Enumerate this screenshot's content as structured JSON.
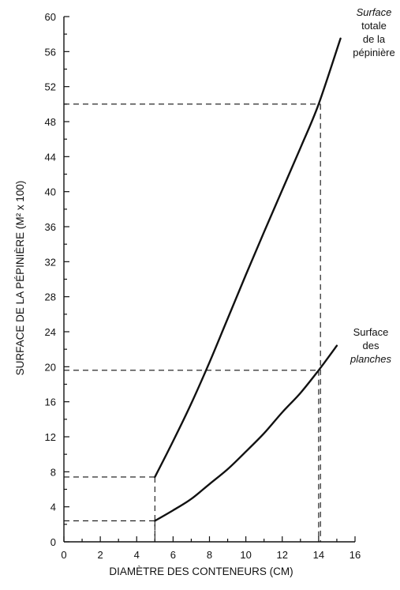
{
  "chart_data": {
    "type": "line",
    "xlabel": "DIAMÈTRE DES CONTENEURS (CM)",
    "ylabel": "SURFACE DE LA PÉPINIÈRE (M² x 100)",
    "xlim": [
      0,
      16
    ],
    "ylim": [
      0,
      60
    ],
    "x_ticks": [
      0,
      2,
      4,
      6,
      8,
      10,
      12,
      14,
      16
    ],
    "y_ticks": [
      0,
      4,
      8,
      12,
      16,
      20,
      24,
      28,
      32,
      36,
      40,
      44,
      48,
      52,
      56,
      60
    ],
    "grid": false,
    "series": [
      {
        "name": "Surface totale de la pépinière",
        "label_lines": [
          [
            "Surface",
            true
          ],
          [
            "totale",
            false
          ],
          [
            "de la",
            false
          ],
          [
            "pépinière",
            false
          ]
        ],
        "x": [
          5,
          6,
          7,
          8,
          9,
          10,
          11,
          12,
          13,
          14,
          15.2
        ],
        "y": [
          7.4,
          11.5,
          15.8,
          20.5,
          25.5,
          30.5,
          35.4,
          40.2,
          45,
          50,
          57.5
        ]
      },
      {
        "name": "Surface des planches",
        "label_lines": [
          [
            "Surface",
            false
          ],
          [
            "des",
            false
          ],
          [
            "planches",
            true
          ]
        ],
        "x": [
          5,
          6,
          7,
          8,
          9,
          10,
          11,
          12,
          13,
          14,
          15
        ],
        "y": [
          2.4,
          3.6,
          4.9,
          6.6,
          8.3,
          10.3,
          12.4,
          14.8,
          17.0,
          19.6,
          22.4
        ]
      }
    ],
    "reference_lines": [
      {
        "x": 5,
        "y": 7.4
      },
      {
        "x": 5,
        "y": 2.4
      },
      {
        "x": 14.1,
        "y": 50
      },
      {
        "x": 14,
        "y": 19.6
      }
    ]
  }
}
